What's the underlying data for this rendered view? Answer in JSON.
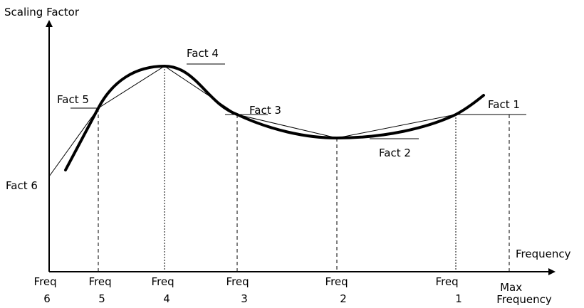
{
  "axes": {
    "y_label": "Scaling Factor",
    "x_label": "Frequency"
  },
  "factors": {
    "f1": "Fact 1",
    "f2": "Fact 2",
    "f3": "Fact 3",
    "f4": "Fact 4",
    "f5": "Fact 5",
    "f6": "Fact 6"
  },
  "freqs": {
    "f6": [
      "Freq",
      "6"
    ],
    "f5": [
      "Freq",
      "5"
    ],
    "f4": [
      "Freq",
      "4"
    ],
    "f3": [
      "Freq",
      "3"
    ],
    "f2": [
      "Freq",
      "2"
    ],
    "f1": [
      "Freq",
      "1"
    ],
    "max": [
      "Max",
      "Frequency"
    ]
  },
  "colors": {
    "ink": "#000000",
    "background": "#ffffff"
  }
}
